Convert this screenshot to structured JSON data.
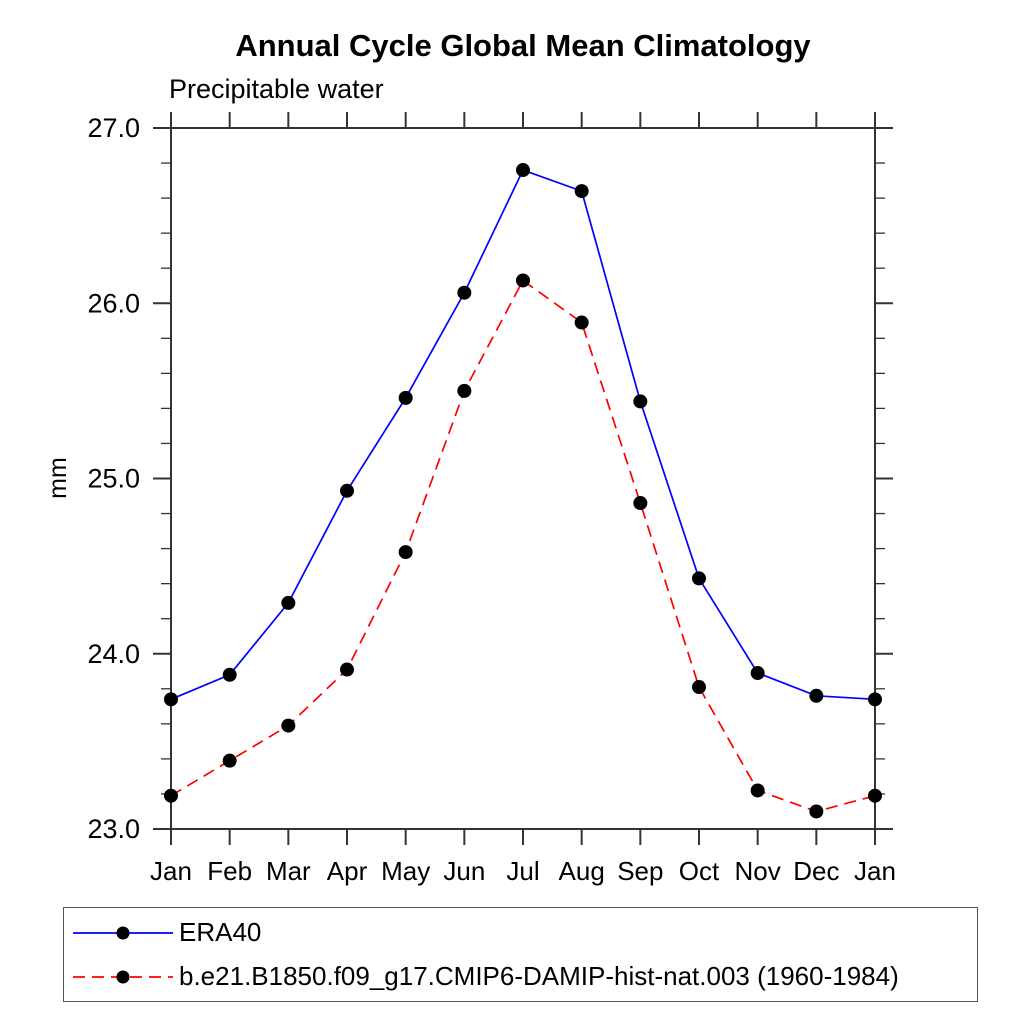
{
  "chart_data": {
    "type": "line",
    "title": "Annual Cycle Global Mean Climatology",
    "subtitle": "Precipitable water",
    "ylabel": "mm",
    "xlabel": "",
    "categories": [
      "Jan",
      "Feb",
      "Mar",
      "Apr",
      "May",
      "Jun",
      "Jul",
      "Aug",
      "Sep",
      "Oct",
      "Nov",
      "Dec",
      "Jan"
    ],
    "ylim": [
      23.0,
      27.0
    ],
    "y_ticks": [
      23.0,
      24.0,
      25.0,
      26.0,
      27.0
    ],
    "y_tick_labels": [
      "23.0",
      "24.0",
      "25.0",
      "26.0",
      "27.0"
    ],
    "y_minor_step": 0.2,
    "grid": false,
    "legend_position": "bottom",
    "axis_color": "#333333",
    "marker_color": "#000000",
    "series": [
      {
        "name": "ERA40",
        "color": "#0000ff",
        "dash": "solid",
        "marker": "circle",
        "values": [
          23.74,
          23.88,
          24.29,
          24.93,
          25.46,
          26.06,
          26.76,
          26.64,
          25.44,
          24.43,
          23.89,
          23.76,
          23.74
        ]
      },
      {
        "name": "b.e21.B1850.f09_g17.CMIP6-DAMIP-hist-nat.003 (1960-1984)",
        "color": "#ff0000",
        "dash": "dashed",
        "marker": "circle",
        "values": [
          23.19,
          23.39,
          23.59,
          23.91,
          24.58,
          25.5,
          26.13,
          25.89,
          24.86,
          23.81,
          23.22,
          23.1,
          23.19
        ]
      }
    ]
  }
}
